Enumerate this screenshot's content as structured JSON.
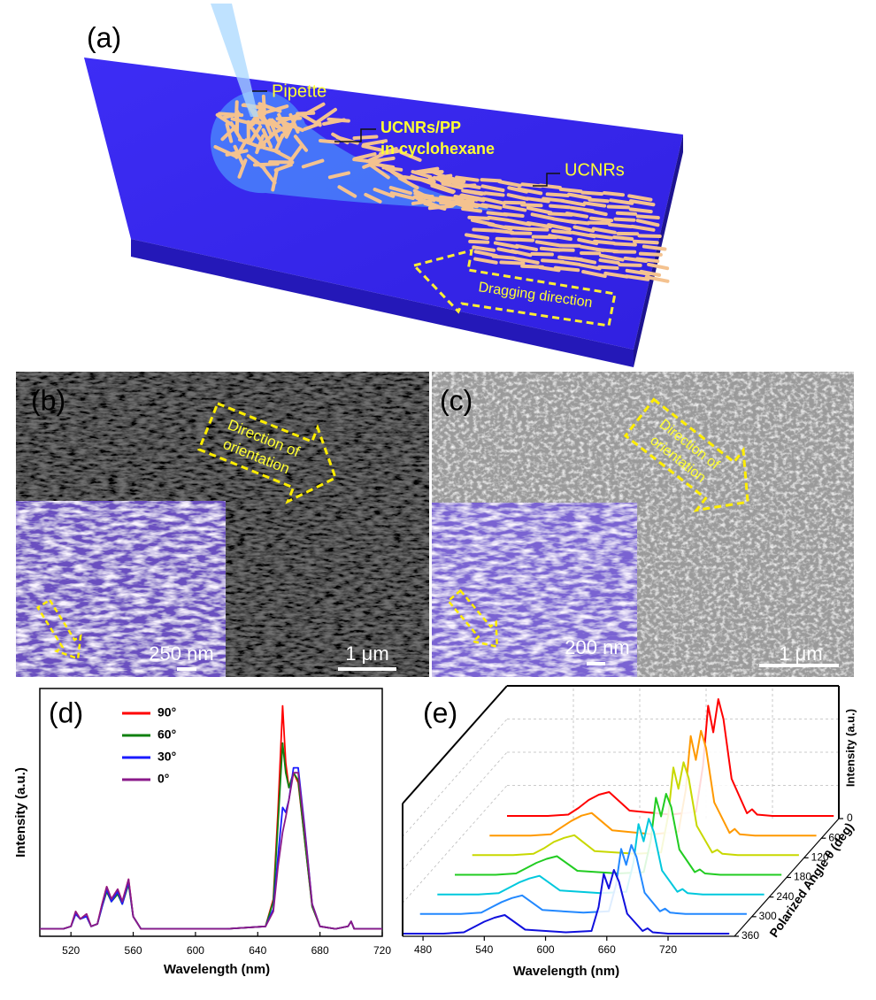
{
  "panels": {
    "a": {
      "label": "(a)",
      "pipette": "Pipette",
      "solution": [
        "UCNRs/PP",
        "in cyclohexane"
      ],
      "rods": "UCNRs",
      "dragging": "Dragging direction"
    },
    "b": {
      "label": "(b)",
      "arrow": [
        "Direction of",
        "orientation"
      ],
      "inset_scale": "250 nm",
      "scale": "1 μm"
    },
    "c": {
      "label": "(c)",
      "arrow": [
        "Direction of",
        "orientation"
      ],
      "inset_scale": "200 nm",
      "scale": "1 μm"
    },
    "d": {
      "label": "(d)"
    },
    "e": {
      "label": "(e)"
    }
  },
  "chart_data": [
    {
      "type": "line",
      "xlabel": "Wavelength (nm)",
      "ylabel": "Intensity (a.u.)",
      "x": [
        500,
        515,
        520,
        523,
        526,
        530,
        533,
        537,
        540,
        543,
        546,
        550,
        553,
        557,
        560,
        565,
        580,
        620,
        645,
        650,
        653,
        656,
        658,
        660,
        663,
        666,
        670,
        675,
        680,
        690,
        698,
        700,
        702,
        710,
        720
      ],
      "xlim": [
        500,
        720
      ],
      "xticks": [
        520,
        560,
        600,
        640,
        680,
        720
      ],
      "ylim": [
        0,
        1
      ],
      "series": [
        {
          "name": "90°",
          "color": "#ff0000",
          "values": [
            0.03,
            0.03,
            0.04,
            0.1,
            0.07,
            0.09,
            0.04,
            0.05,
            0.13,
            0.2,
            0.15,
            0.19,
            0.14,
            0.23,
            0.08,
            0.03,
            0.03,
            0.03,
            0.04,
            0.15,
            0.5,
            0.93,
            0.7,
            0.6,
            0.66,
            0.62,
            0.4,
            0.12,
            0.04,
            0.03,
            0.04,
            0.06,
            0.03,
            0.03,
            0.03
          ]
        },
        {
          "name": "60°",
          "color": "#108010",
          "values": [
            0.03,
            0.03,
            0.04,
            0.09,
            0.07,
            0.08,
            0.04,
            0.05,
            0.12,
            0.18,
            0.14,
            0.17,
            0.13,
            0.21,
            0.08,
            0.03,
            0.03,
            0.03,
            0.04,
            0.14,
            0.45,
            0.78,
            0.66,
            0.6,
            0.66,
            0.63,
            0.4,
            0.12,
            0.04,
            0.03,
            0.04,
            0.06,
            0.03,
            0.03,
            0.03
          ]
        },
        {
          "name": "30°",
          "color": "#1a1aff",
          "values": [
            0.03,
            0.03,
            0.04,
            0.09,
            0.07,
            0.08,
            0.04,
            0.05,
            0.12,
            0.19,
            0.14,
            0.18,
            0.13,
            0.22,
            0.08,
            0.03,
            0.03,
            0.03,
            0.04,
            0.11,
            0.32,
            0.52,
            0.5,
            0.55,
            0.68,
            0.68,
            0.45,
            0.13,
            0.04,
            0.03,
            0.04,
            0.06,
            0.03,
            0.03,
            0.03
          ]
        },
        {
          "name": "0°",
          "color": "#8a1a8a",
          "values": [
            0.03,
            0.03,
            0.04,
            0.1,
            0.07,
            0.09,
            0.04,
            0.05,
            0.13,
            0.2,
            0.15,
            0.19,
            0.14,
            0.23,
            0.08,
            0.03,
            0.03,
            0.03,
            0.04,
            0.1,
            0.28,
            0.42,
            0.48,
            0.55,
            0.66,
            0.66,
            0.44,
            0.13,
            0.04,
            0.03,
            0.04,
            0.06,
            0.03,
            0.03,
            0.03
          ]
        }
      ]
    },
    {
      "type": "waterfall",
      "xlabel": "Wavelength (nm)",
      "ylabel": "Polarized Angle θ (deg)",
      "zlabel": "Intensity (a.u.)",
      "x": [
        460,
        500,
        520,
        530,
        540,
        550,
        560,
        580,
        620,
        645,
        652,
        657,
        662,
        667,
        672,
        680,
        695,
        700,
        705,
        720,
        780
      ],
      "xlim": [
        460,
        785
      ],
      "xticks": [
        480,
        540,
        600,
        660,
        720
      ],
      "ylim": [
        0,
        360
      ],
      "yticks": [
        60,
        120,
        180,
        240,
        300,
        360
      ],
      "zlim": [
        0,
        1
      ],
      "zticks": [
        0
      ],
      "series": [
        {
          "angle": 0,
          "color": "#ff0000",
          "values": [
            0.02,
            0.02,
            0.03,
            0.08,
            0.14,
            0.18,
            0.2,
            0.06,
            0.03,
            0.05,
            0.4,
            0.85,
            0.65,
            0.9,
            0.75,
            0.3,
            0.04,
            0.07,
            0.03,
            0.02,
            0.02
          ]
        },
        {
          "angle": 60,
          "color": "#ff9900",
          "values": [
            0.02,
            0.02,
            0.03,
            0.08,
            0.13,
            0.17,
            0.19,
            0.06,
            0.03,
            0.05,
            0.36,
            0.77,
            0.59,
            0.81,
            0.68,
            0.27,
            0.04,
            0.07,
            0.03,
            0.02,
            0.02
          ]
        },
        {
          "angle": 120,
          "color": "#c8d800",
          "values": [
            0.02,
            0.02,
            0.03,
            0.07,
            0.12,
            0.15,
            0.17,
            0.05,
            0.03,
            0.04,
            0.32,
            0.68,
            0.52,
            0.72,
            0.6,
            0.24,
            0.04,
            0.06,
            0.03,
            0.02,
            0.02
          ]
        },
        {
          "angle": 180,
          "color": "#22cc22",
          "values": [
            0.02,
            0.02,
            0.03,
            0.07,
            0.11,
            0.14,
            0.16,
            0.05,
            0.03,
            0.04,
            0.28,
            0.6,
            0.46,
            0.63,
            0.53,
            0.21,
            0.04,
            0.06,
            0.03,
            0.02,
            0.02
          ]
        },
        {
          "angle": 240,
          "color": "#00c8dd",
          "values": [
            0.02,
            0.02,
            0.03,
            0.07,
            0.11,
            0.14,
            0.16,
            0.05,
            0.03,
            0.04,
            0.26,
            0.55,
            0.42,
            0.59,
            0.49,
            0.2,
            0.04,
            0.06,
            0.03,
            0.02,
            0.02
          ]
        },
        {
          "angle": 300,
          "color": "#2288ff",
          "values": [
            0.02,
            0.02,
            0.03,
            0.07,
            0.11,
            0.14,
            0.16,
            0.05,
            0.03,
            0.04,
            0.24,
            0.51,
            0.39,
            0.54,
            0.45,
            0.18,
            0.04,
            0.06,
            0.03,
            0.02,
            0.02
          ]
        },
        {
          "angle": 360,
          "color": "#1010dd",
          "values": [
            0.02,
            0.02,
            0.03,
            0.07,
            0.11,
            0.14,
            0.16,
            0.05,
            0.03,
            0.04,
            0.22,
            0.47,
            0.36,
            0.5,
            0.41,
            0.17,
            0.04,
            0.06,
            0.03,
            0.02,
            0.02
          ]
        }
      ]
    }
  ]
}
